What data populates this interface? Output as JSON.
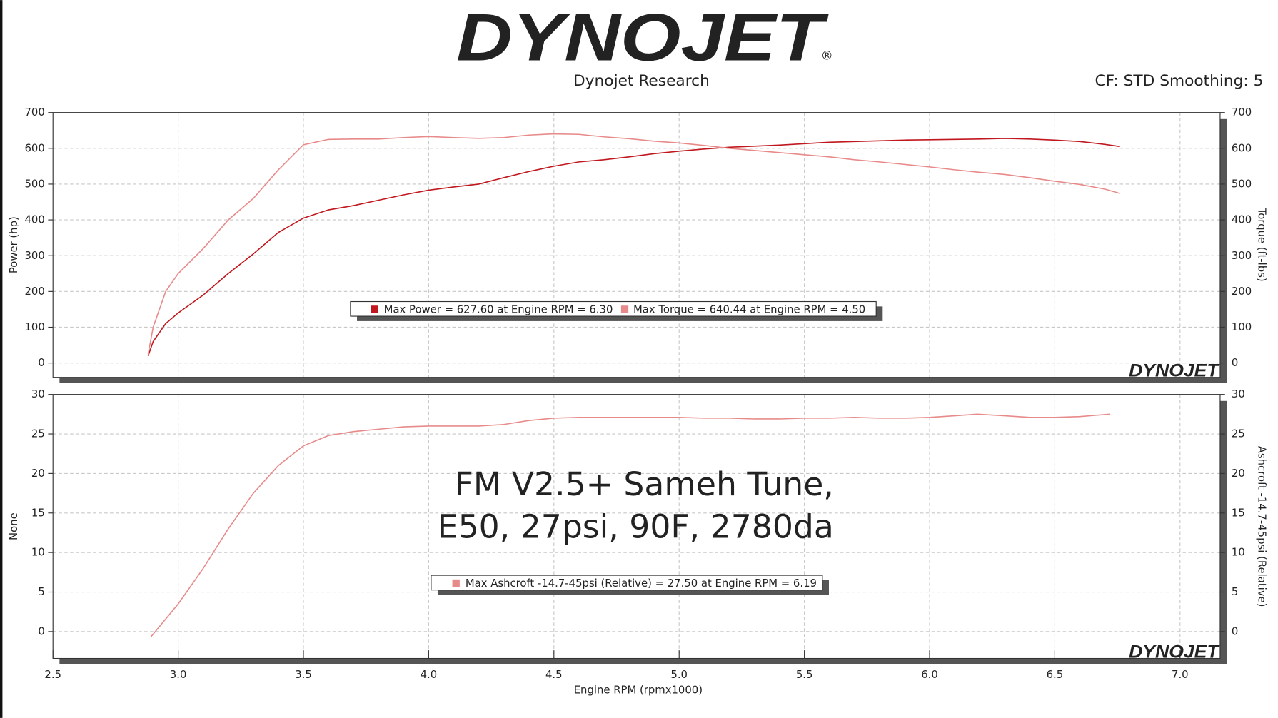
{
  "header": {
    "logo": "DYNOJET",
    "registered": "®",
    "title": "Dynojet Research",
    "settings": "CF: STD Smoothing: 5"
  },
  "chart_data": [
    {
      "type": "line",
      "ylabel": "Power (hp)",
      "y2label": "Torque (ft-lbs)",
      "x": [
        2.88,
        2.9,
        2.95,
        3.0,
        3.1,
        3.2,
        3.3,
        3.4,
        3.5,
        3.6,
        3.7,
        3.8,
        3.9,
        4.0,
        4.1,
        4.2,
        4.3,
        4.4,
        4.5,
        4.6,
        4.7,
        4.8,
        4.9,
        5.0,
        5.1,
        5.2,
        5.3,
        5.4,
        5.5,
        5.6,
        5.7,
        5.8,
        5.9,
        6.0,
        6.1,
        6.2,
        6.3,
        6.4,
        6.5,
        6.6,
        6.7,
        6.76
      ],
      "series": [
        {
          "name": "Max Power = 627.60 at Engine RPM = 6.30",
          "color": "#c0181e",
          "values": [
            20,
            60,
            110,
            140,
            190,
            250,
            305,
            365,
            405,
            428,
            440,
            455,
            470,
            483,
            492,
            500,
            518,
            535,
            550,
            562,
            568,
            576,
            585,
            592,
            598,
            603,
            606,
            609,
            613,
            617,
            619,
            621,
            623,
            624,
            625,
            626,
            627.6,
            626,
            623,
            619,
            611,
            605
          ]
        },
        {
          "name": "Max Torque = 640.44 at Engine RPM = 4.50",
          "color": "#e88a8a",
          "axis": "y2",
          "values": [
            25,
            100,
            200,
            250,
            320,
            400,
            460,
            540,
            610,
            625,
            626,
            626,
            630,
            633,
            630,
            628,
            630,
            637,
            640.44,
            639,
            632,
            627,
            620,
            615,
            608,
            600,
            594,
            588,
            582,
            576,
            568,
            562,
            555,
            548,
            540,
            533,
            527,
            518,
            508,
            499,
            486,
            474
          ]
        }
      ],
      "xlim": [
        2.5,
        7.16
      ],
      "ylim": [
        -40,
        700
      ],
      "yticks": [
        0,
        100,
        200,
        300,
        400,
        500,
        600,
        700
      ],
      "y2lim": [
        -40,
        700
      ],
      "y2ticks": [
        0,
        100,
        200,
        300,
        400,
        500,
        600,
        700
      ],
      "grid": true
    },
    {
      "type": "line",
      "ylabel": "None",
      "y2label": "Ashcroft -14.7-45psi (Relative)",
      "xlabel": "Engine RPM (rpmx1000)",
      "annotation": [
        "FM V2.5+ Sameh Tune,",
        "E50, 27psi, 90F, 2780da"
      ],
      "x": [
        2.89,
        3.0,
        3.1,
        3.2,
        3.3,
        3.4,
        3.5,
        3.6,
        3.7,
        3.8,
        3.9,
        4.0,
        4.1,
        4.2,
        4.3,
        4.4,
        4.5,
        4.6,
        4.7,
        4.8,
        4.9,
        5.0,
        5.1,
        5.2,
        5.3,
        5.4,
        5.5,
        5.6,
        5.7,
        5.8,
        5.9,
        6.0,
        6.1,
        6.19,
        6.3,
        6.4,
        6.5,
        6.6,
        6.72
      ],
      "series": [
        {
          "name": "Max Ashcroft -14.7-45psi (Relative) = 27.50 at Engine RPM = 6.19",
          "color": "#e88a8a",
          "axis": "y2",
          "values": [
            -0.7,
            3.5,
            8,
            13,
            17.5,
            21,
            23.5,
            24.8,
            25.3,
            25.6,
            25.9,
            26,
            26,
            26,
            26.2,
            26.7,
            27,
            27.1,
            27.1,
            27.1,
            27.1,
            27.1,
            27,
            27,
            26.9,
            26.9,
            27,
            27,
            27.1,
            27,
            27,
            27.1,
            27.3,
            27.5,
            27.3,
            27.1,
            27.1,
            27.2,
            27.5
          ]
        }
      ],
      "xlim": [
        2.5,
        7.16
      ],
      "xticks": [
        2.5,
        {
          "value": 3,
          "label": "3.0"
        },
        3.5,
        {
          "value": 4,
          "label": "4.0"
        },
        4.5,
        {
          "value": 5,
          "label": "5.0"
        },
        5.5,
        {
          "value": 6,
          "label": "6.0"
        },
        6.5,
        {
          "value": 7,
          "label": "7.0"
        }
      ],
      "ylim": [
        -3.4,
        30
      ],
      "yticks": [
        0,
        5,
        10,
        15,
        20,
        25,
        30
      ],
      "y2lim": [
        -3.4,
        30
      ],
      "y2ticks": [
        0,
        5,
        10,
        15,
        20,
        25,
        30
      ],
      "grid": true
    }
  ]
}
